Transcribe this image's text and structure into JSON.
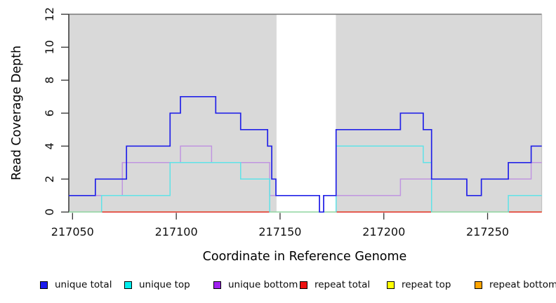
{
  "chart_data": {
    "type": "line",
    "step": true,
    "xlabel": "Coordinate in Reference Genome",
    "ylabel": "Read Coverage Depth",
    "xlim": [
      217048.2,
      217276.1
    ],
    "ylim": [
      0,
      12
    ],
    "x_ticks": [
      217050,
      217100,
      217150,
      217200,
      217250
    ],
    "y_ticks": [
      0,
      2,
      4,
      6,
      8,
      10,
      12
    ],
    "x_end": 217276.1,
    "top_boundary_value": 12,
    "background": {
      "band_color": "#d9d9d9",
      "unique_region_bands": [
        [
          217048.2,
          217148.3
        ],
        [
          217176.9,
          217276.1
        ]
      ],
      "white_gap": [
        217148.3,
        217176.9
      ]
    },
    "zero_overlap_color": "#8fd5a0",
    "series": [
      {
        "name": "repeat bottom",
        "color": "#ff8c00",
        "width": 1.5,
        "points": [
          [
            217048.2,
            0
          ]
        ]
      },
      {
        "name": "repeat top",
        "color": "#f0f000",
        "width": 1.4,
        "points": [
          [
            217048.2,
            0
          ]
        ]
      },
      {
        "name": "repeat total",
        "color": "#e02020",
        "width": 1.4,
        "points": [
          [
            217048.2,
            0
          ]
        ]
      },
      {
        "name": "unique bottom",
        "color": "#c095e0",
        "width": 1.5,
        "points": [
          [
            217048.2,
            1
          ],
          [
            217074,
            3
          ],
          [
            217102,
            4
          ],
          [
            217117,
            3
          ],
          [
            217145,
            1
          ],
          [
            217169,
            0
          ],
          [
            217171,
            1
          ],
          [
            217208,
            2
          ],
          [
            217240,
            1
          ],
          [
            217247,
            2
          ],
          [
            217271,
            3
          ]
        ]
      },
      {
        "name": "unique top",
        "color": "#5fe2e8",
        "width": 1.5,
        "points": [
          [
            217048.2,
            0
          ],
          [
            217064,
            1
          ],
          [
            217097,
            3
          ],
          [
            217131,
            2
          ],
          [
            217145,
            0
          ],
          [
            217177,
            4
          ],
          [
            217219,
            3
          ],
          [
            217223,
            0
          ],
          [
            217260,
            1
          ]
        ]
      },
      {
        "name": "unique total",
        "color": "#2222e8",
        "width": 1.7,
        "points": [
          [
            217048.2,
            1
          ],
          [
            217061,
            2
          ],
          [
            217076,
            4
          ],
          [
            217097,
            6
          ],
          [
            217102,
            7
          ],
          [
            217119,
            6
          ],
          [
            217131,
            5
          ],
          [
            217144,
            4
          ],
          [
            217146,
            2
          ],
          [
            217148,
            1
          ],
          [
            217169,
            0
          ],
          [
            217171,
            1
          ],
          [
            217177,
            5
          ],
          [
            217208,
            6
          ],
          [
            217219,
            5
          ],
          [
            217223,
            2
          ],
          [
            217240,
            1
          ],
          [
            217247,
            2
          ],
          [
            217260,
            3
          ],
          [
            217271,
            4
          ]
        ]
      }
    ]
  },
  "legend": {
    "items": [
      {
        "label": "unique total",
        "color": "#1a1aee"
      },
      {
        "label": "unique top",
        "color": "#00eeee"
      },
      {
        "label": "unique bottom",
        "color": "#a020f0"
      },
      {
        "label": "repeat total",
        "color": "#ee1111"
      },
      {
        "label": "repeat top",
        "color": "#ffff00"
      },
      {
        "label": "repeat bottom",
        "color": "#ffa500"
      }
    ]
  }
}
